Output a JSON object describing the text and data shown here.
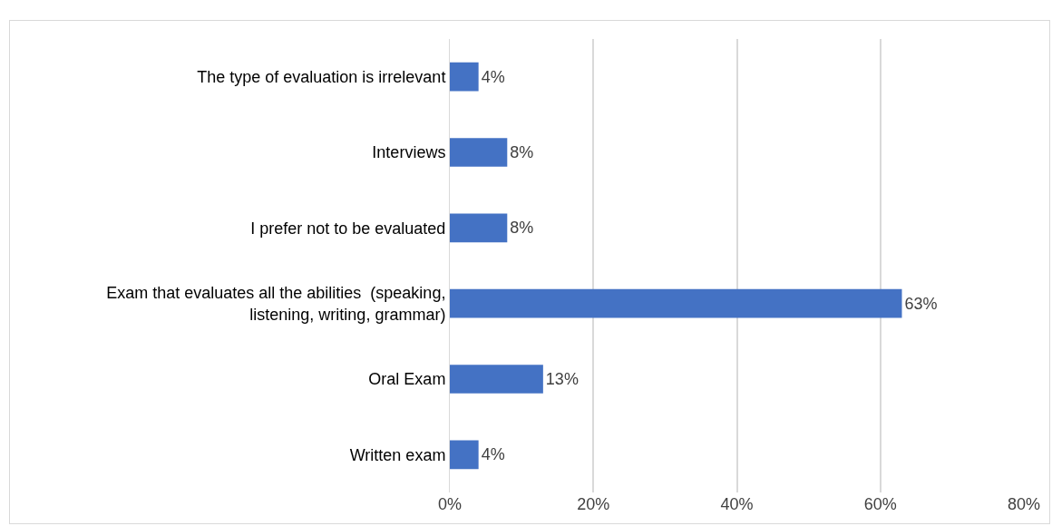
{
  "chart_data": {
    "type": "bar",
    "orientation": "horizontal",
    "categories": [
      "The type of evaluation is irrelevant",
      "Interviews",
      "I prefer not to be evaluated",
      "Exam that evaluates all the abilities  (speaking, listening, writing, grammar)",
      "Oral Exam",
      "Written exam"
    ],
    "values": [
      4,
      8,
      8,
      63,
      13,
      4
    ],
    "value_labels": [
      "4%",
      "8%",
      "8%",
      "63%",
      "13%",
      "4%"
    ],
    "color": "#4472c4",
    "xlim": [
      0,
      80
    ],
    "xticks": [
      {
        "value": 0,
        "label": "0%"
      },
      {
        "value": 20,
        "label": "20%"
      },
      {
        "value": 40,
        "label": "40%"
      },
      {
        "value": 60,
        "label": "60%"
      },
      {
        "value": 80,
        "label": "80%"
      }
    ],
    "grid": "x"
  }
}
